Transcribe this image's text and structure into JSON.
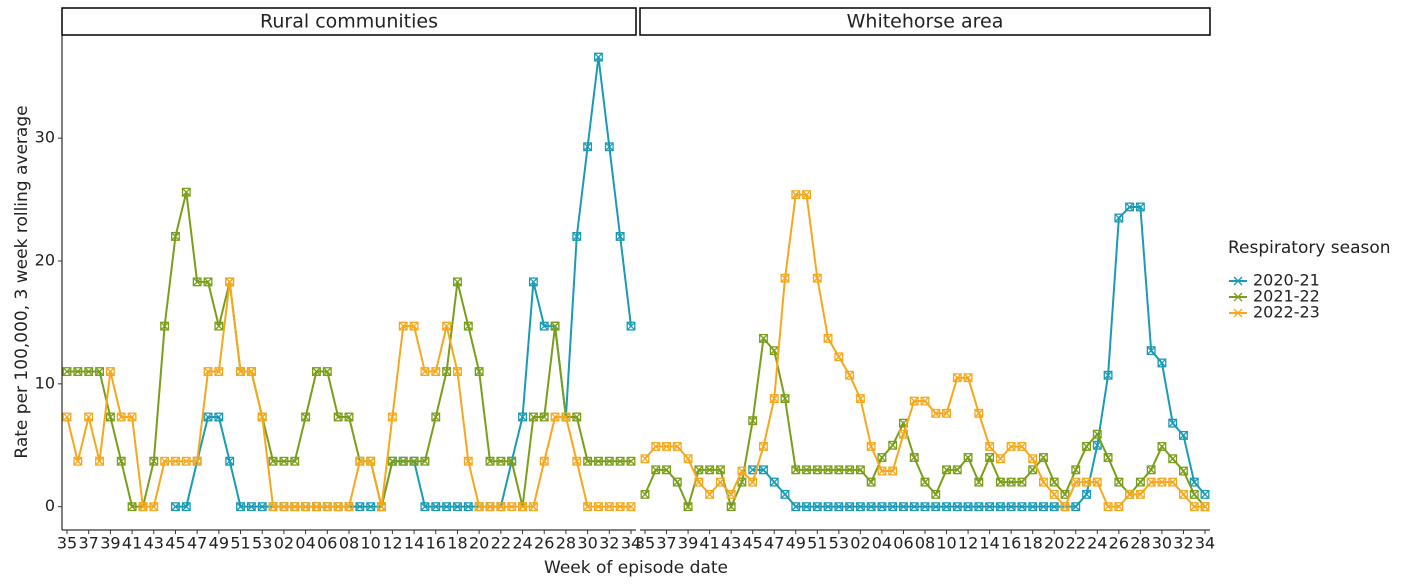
{
  "x_label": "Week of episode date",
  "y_label": "Rate per 100,000, 3 week rolling average",
  "legend_title": "Respiratory season",
  "chart_data": [
    {
      "type": "line",
      "title": "Rural communities",
      "categories": [
        "35",
        null,
        "37",
        null,
        "39",
        null,
        "41",
        null,
        "43",
        null,
        "45",
        null,
        "47",
        null,
        "49",
        null,
        "51",
        null,
        "53",
        null,
        "02",
        null,
        "04",
        null,
        "06",
        null,
        "08",
        null,
        "10",
        null,
        "12",
        null,
        "14",
        null,
        "16",
        null,
        "18",
        null,
        "20",
        null,
        "22",
        null,
        "24",
        null,
        "26",
        null,
        "28",
        null,
        "30",
        null,
        "32",
        null,
        "34"
      ],
      "ylim": [
        -1.9,
        38.4
      ],
      "yticks": [
        0,
        10,
        20,
        30
      ],
      "series": [
        {
          "name": "2020-21",
          "color": "#1a9bb5",
          "values": [
            null,
            null,
            null,
            null,
            null,
            null,
            null,
            null,
            null,
            null,
            0,
            0,
            3.7,
            7.3,
            7.3,
            3.7,
            0,
            0,
            0,
            0,
            0,
            0,
            0,
            0,
            0,
            0,
            0,
            0,
            0,
            0,
            3.7,
            3.7,
            3.7,
            0,
            0,
            0,
            0,
            0,
            0,
            0,
            0,
            3.7,
            7.3,
            18.3,
            14.7,
            14.7,
            7.3,
            22,
            29.3,
            36.6,
            29.3,
            22,
            14.7
          ]
        },
        {
          "name": "2021-22",
          "color": "#7a9e1a",
          "values": [
            11,
            11,
            11,
            11,
            7.3,
            3.7,
            0,
            0,
            3.7,
            14.7,
            22,
            25.6,
            18.3,
            18.3,
            14.7,
            18.3,
            11,
            11,
            7.3,
            3.7,
            3.7,
            3.7,
            7.3,
            11,
            11,
            7.3,
            7.3,
            3.7,
            3.7,
            0,
            3.7,
            3.7,
            3.7,
            3.7,
            7.3,
            11,
            18.3,
            14.7,
            11,
            3.7,
            3.7,
            3.7,
            0,
            7.3,
            7.3,
            14.7,
            7.3,
            7.3,
            3.7,
            3.7,
            3.7,
            3.7,
            3.7
          ]
        },
        {
          "name": "2022-23",
          "color": "#f5a81c",
          "values": [
            7.3,
            3.7,
            7.3,
            3.7,
            11,
            7.3,
            7.3,
            0,
            0,
            3.7,
            3.7,
            3.7,
            3.7,
            11,
            11,
            18.3,
            11,
            11,
            7.3,
            0,
            0,
            0,
            0,
            0,
            0,
            0,
            0,
            3.7,
            3.7,
            0,
            7.3,
            14.7,
            14.7,
            11,
            11,
            14.7,
            11,
            3.7,
            0,
            0,
            0,
            0,
            0,
            0,
            3.7,
            7.3,
            7.3,
            3.7,
            0,
            0,
            0,
            0,
            0
          ]
        }
      ]
    },
    {
      "type": "line",
      "title": "Whitehorse area",
      "categories": [
        "35",
        null,
        "37",
        null,
        "39",
        null,
        "41",
        null,
        "43",
        null,
        "45",
        null,
        "47",
        null,
        "49",
        null,
        "51",
        null,
        "53",
        null,
        "02",
        null,
        "04",
        null,
        "06",
        null,
        "08",
        null,
        "10",
        null,
        "12",
        null,
        "14",
        null,
        "16",
        null,
        "18",
        null,
        "20",
        null,
        "22",
        null,
        "24",
        null,
        "26",
        null,
        "28",
        null,
        "30",
        null,
        "32",
        null,
        "34"
      ],
      "ylim": [
        -1.9,
        38.4
      ],
      "series": [
        {
          "name": "2020-21",
          "color": "#1a9bb5",
          "values": [
            null,
            null,
            null,
            null,
            null,
            null,
            null,
            null,
            null,
            null,
            3,
            3,
            2,
            1,
            0,
            0,
            0,
            0,
            0,
            0,
            0,
            0,
            0,
            0,
            0,
            0,
            0,
            0,
            0,
            0,
            0,
            0,
            0,
            0,
            0,
            0,
            0,
            0,
            0,
            0,
            0,
            1,
            5,
            10.7,
            23.5,
            24.4,
            24.4,
            12.7,
            11.7,
            6.8,
            5.8,
            2,
            1
          ]
        },
        {
          "name": "2021-22",
          "color": "#7a9e1a",
          "values": [
            1,
            3,
            3,
            2,
            0,
            3,
            3,
            3,
            0,
            2,
            7,
            13.7,
            12.7,
            8.8,
            3,
            3,
            3,
            3,
            3,
            3,
            3,
            2,
            4,
            5,
            6.8,
            4,
            2,
            1,
            3,
            3,
            4,
            2,
            4,
            2,
            2,
            2,
            3,
            4,
            2,
            1,
            3,
            4.9,
            5.9,
            4,
            2,
            1,
            2,
            3,
            4.9,
            3.9,
            2.9,
            1,
            0
          ]
        },
        {
          "name": "2022-23",
          "color": "#f5a81c",
          "values": [
            3.9,
            4.9,
            4.9,
            4.9,
            3.9,
            2,
            1,
            2,
            1,
            2.9,
            2,
            4.9,
            8.8,
            18.6,
            25.4,
            25.4,
            18.6,
            13.7,
            12.2,
            10.7,
            8.8,
            4.9,
            2.9,
            2.9,
            5.9,
            8.6,
            8.6,
            7.6,
            7.6,
            10.5,
            10.5,
            7.6,
            4.9,
            3.9,
            4.9,
            4.9,
            3.9,
            2,
            1,
            0,
            2,
            2,
            2,
            0,
            0,
            1,
            1,
            2,
            2,
            2,
            1,
            0,
            0
          ]
        }
      ]
    }
  ]
}
